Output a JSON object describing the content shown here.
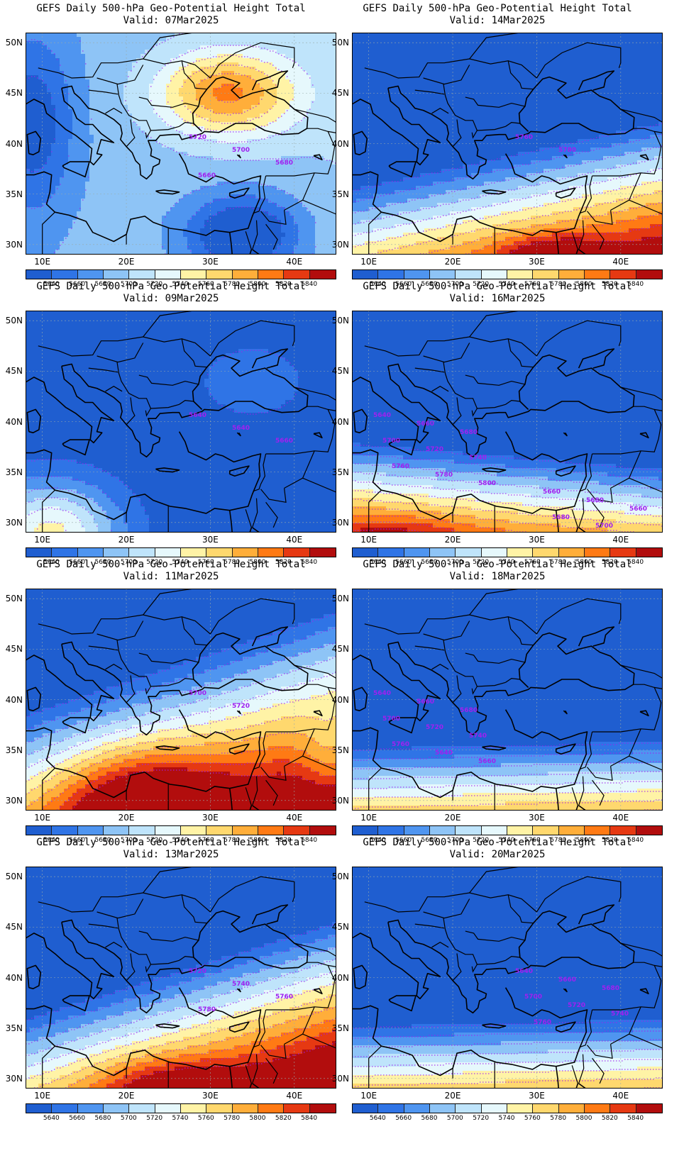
{
  "figure": {
    "panels": [
      {
        "title_line1": "GEFS Daily 500-hPa Geo-Potential Height Total",
        "title_line2": "Valid: 07Mar2025",
        "contour_labels": [
          "5720",
          "5700",
          "5680",
          "5660"
        ],
        "pattern": "ridge-north-trough-south"
      },
      {
        "title_line1": "GEFS Daily 500-hPa Geo-Potential Height Total",
        "title_line2": "Valid: 14Mar2025",
        "contour_labels": [
          "5760",
          "5780"
        ],
        "pattern": "ridge-southeast"
      },
      {
        "title_line1": "GEFS Daily 500-hPa Geo-Potential Height Total",
        "title_line2": "Valid: 09Mar2025",
        "contour_labels": [
          "5640",
          "5640",
          "5660"
        ],
        "pattern": "trough-east-ridge-southwest"
      },
      {
        "title_line1": "GEFS Daily 500-hPa Geo-Potential Height Total",
        "title_line2": "Valid: 16Mar2025",
        "contour_labels": [
          "5640",
          "5660",
          "5680",
          "5700",
          "5720",
          "5740",
          "5760",
          "5780",
          "5800",
          "5660",
          "5680",
          "5660",
          "5680",
          "5700"
        ],
        "pattern": "zonal-ridge-southwest"
      },
      {
        "title_line1": "GEFS Daily 500-hPa Geo-Potential Height Total",
        "title_line2": "Valid: 11Mar2025",
        "contour_labels": [
          "5700",
          "5720"
        ],
        "pattern": "ridge-south-central"
      },
      {
        "title_line1": "GEFS Daily 500-hPa Geo-Potential Height Total",
        "title_line2": "Valid: 18Mar2025",
        "contour_labels": [
          "5640",
          "5660",
          "5680",
          "5700",
          "5720",
          "5740",
          "5760",
          "5640",
          "5660"
        ],
        "pattern": "zonal-south"
      },
      {
        "title_line1": "GEFS Daily 500-hPa Geo-Potential Height Total",
        "title_line2": "Valid: 13Mar2025",
        "contour_labels": [
          "5720",
          "5740",
          "5760",
          "5780"
        ],
        "pattern": "ridge-south-tilted"
      },
      {
        "title_line1": "GEFS Daily 500-hPa Geo-Potential Height Total",
        "title_line2": "Valid: 20Mar2025",
        "contour_labels": [
          "5640",
          "5660",
          "5680",
          "5700",
          "5720",
          "5740",
          "5760"
        ],
        "pattern": "zonal-south"
      }
    ],
    "lat_labels": [
      "50N",
      "45N",
      "40N",
      "35N",
      "30N"
    ],
    "lon_labels": [
      "10E",
      "20E",
      "30E",
      "40E"
    ],
    "colorbar_labels": [
      "5640",
      "5660",
      "5680",
      "5700",
      "5720",
      "5740",
      "5760",
      "5780",
      "5800",
      "5820",
      "5840"
    ],
    "colorbar_colors": [
      "#1f5ed0",
      "#2f74e6",
      "#4f95f0",
      "#8ec4f6",
      "#bfe4fb",
      "#e6f8fc",
      "#fff3a6",
      "#ffd86e",
      "#ffae3a",
      "#ff7a14",
      "#e63912",
      "#b20d0d"
    ],
    "contour_color": "#a020f0",
    "coast_color": "#000000"
  }
}
